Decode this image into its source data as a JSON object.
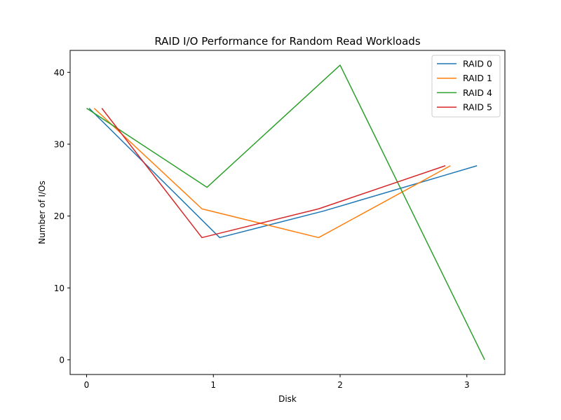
{
  "chart_data": {
    "type": "line",
    "title": "RAID I/O Performance for Random Read Workloads",
    "xlabel": "Disk",
    "ylabel": "Number of I/Os",
    "xlim": [
      -0.13,
      3.3
    ],
    "ylim": [
      -2.05,
      43.05
    ],
    "x_ticks": [
      0,
      1,
      2,
      3
    ],
    "y_ticks": [
      0,
      10,
      20,
      30,
      40
    ],
    "grid": false,
    "legend_position": "top-right",
    "series": [
      {
        "name": "RAID 0",
        "color": "#1f77b4",
        "x": [
          0.02,
          1.05,
          1.87,
          3.08
        ],
        "y": [
          35,
          17,
          20.7,
          27
        ]
      },
      {
        "name": "RAID 1",
        "color": "#ff7f0e",
        "x": [
          0.06,
          0.91,
          1.83,
          2.87
        ],
        "y": [
          35,
          21,
          17,
          27
        ]
      },
      {
        "name": "RAID 4",
        "color": "#2ca02c",
        "x": [
          0.0,
          0.95,
          2.0,
          3.14
        ],
        "y": [
          35,
          24,
          41,
          0
        ]
      },
      {
        "name": "RAID 5",
        "color": "#d62728",
        "x": [
          0.12,
          0.91,
          1.83,
          2.83
        ],
        "y": [
          35,
          17,
          21,
          27
        ]
      }
    ]
  }
}
